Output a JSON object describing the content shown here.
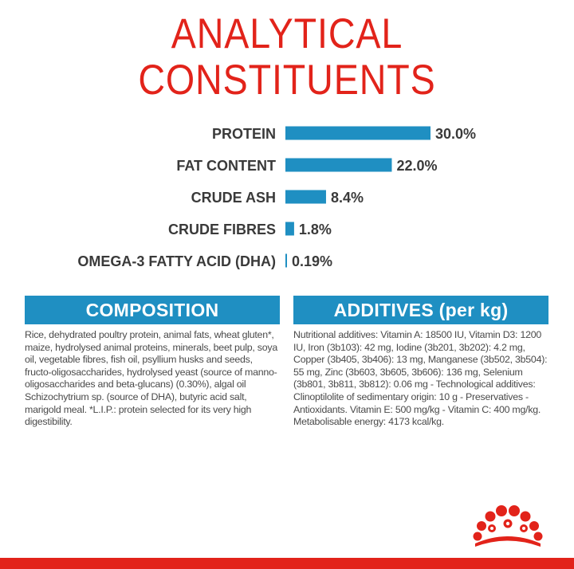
{
  "heading": {
    "line1": "ANALYTICAL",
    "line2": "CONSTITUENTS"
  },
  "colors": {
    "accent_red": "#e2231a",
    "bar_blue": "#1f8fc2",
    "label_gray": "#3a3a3a"
  },
  "chart_data": {
    "type": "bar",
    "orientation": "horizontal",
    "categories": [
      "PROTEIN",
      "FAT CONTENT",
      "CRUDE ASH",
      "CRUDE FIBRES",
      "OMEGA-3 FATTY ACID (DHA)"
    ],
    "values": [
      30.0,
      22.0,
      8.4,
      1.8,
      0.19
    ],
    "value_labels": [
      "30.0%",
      "22.0%",
      "8.4%",
      "1.8%",
      "0.19%"
    ],
    "unit": "%",
    "xlim": [
      0,
      30
    ],
    "grid": false,
    "legend": "none"
  },
  "composition": {
    "title": "COMPOSITION",
    "text": "Rice, dehydrated poultry protein, animal fats, wheat gluten*, maize, hydrolysed animal proteins, minerals, beet pulp, soya oil, vegetable fibres, fish oil, psyllium husks and seeds, fructo-oligosaccharides, hydrolysed yeast (source of manno-oligosaccharides and beta-glucans) (0.30%), algal oil Schizochytrium sp. (source of DHA), butyric acid salt, marigold meal. *L.I.P.: protein selected for its very high digestibility."
  },
  "additives": {
    "title": "ADDITIVES (per kg)",
    "text": "Nutritional additives: Vitamin A: 18500 IU, Vitamin D3: 1200 IU, Iron (3b103): 42 mg, Iodine (3b201, 3b202): 4.2 mg, Copper (3b405, 3b406): 13 mg, Manganese (3b502, 3b504): 55 mg, Zinc (3b603, 3b605, 3b606): 136 mg, Selenium (3b801, 3b811, 3b812): 0.06 mg - Technological additives: Clinoptilolite of sedimentary origin: 10 g - Preservatives - Antioxidants. Vitamin E: 500 mg/kg - Vitamin C: 400 mg/kg. Metabolisable energy: 4173 kcal/kg."
  },
  "logo": {
    "icon": "crown-icon"
  }
}
